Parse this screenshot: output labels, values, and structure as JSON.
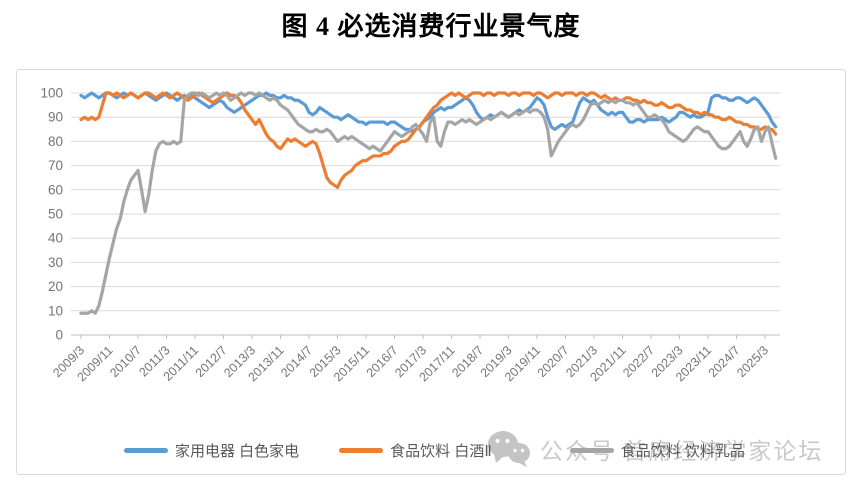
{
  "title": "图 4 必选消费行业景气度",
  "watermark": {
    "icon": "wechat-icon",
    "text": "公众号 首席经济学家论坛"
  },
  "chart_data": {
    "type": "line",
    "title": "图 4 必选消费行业景气度",
    "x_period": "monthly",
    "x_start": "2009/3",
    "x_tick_labels": [
      "2009/3",
      "2009/11",
      "2010/7",
      "2011/3",
      "2011/11",
      "2012/7",
      "2013/3",
      "2013/11",
      "2014/7",
      "2015/3",
      "2015/11",
      "2016/7",
      "2017/3",
      "2017/11",
      "2018/7",
      "2019/3",
      "2019/11",
      "2020/7",
      "2021/3",
      "2021/11",
      "2022/7",
      "2023/3",
      "2023/11",
      "2024/7",
      "2025/3"
    ],
    "x_tick_every_n_points": 8,
    "n_points": 196,
    "ylim": [
      0,
      100
    ],
    "yticks": [
      0,
      10,
      20,
      30,
      40,
      50,
      60,
      70,
      80,
      90,
      100
    ],
    "grid": "horizontal",
    "legend_position": "bottom",
    "axis_label_color": "#757575",
    "gridline_color": "#d9d9d9",
    "axis_line_color": "#bfbfbf",
    "series": [
      {
        "name": "家用电器 白色家电",
        "color": "#5B9BD5",
        "values": [
          99,
          98,
          99,
          100,
          99,
          98,
          99,
          100,
          100,
          99,
          98,
          99,
          100,
          99,
          100,
          99,
          98,
          99,
          100,
          99,
          98,
          97,
          98,
          99,
          100,
          99,
          98,
          97,
          98,
          99,
          98,
          99,
          98,
          97,
          96,
          95,
          94,
          95,
          96,
          97,
          96,
          94,
          93,
          92,
          93,
          94,
          95,
          96,
          97,
          98,
          99,
          99,
          100,
          99,
          99,
          98,
          98,
          99,
          98,
          98,
          97,
          97,
          96,
          95,
          92,
          91,
          92,
          94,
          93,
          92,
          91,
          90,
          90,
          89,
          90,
          91,
          90,
          89,
          88,
          88,
          87,
          88,
          88,
          88,
          88,
          88,
          87,
          88,
          88,
          87,
          86,
          85,
          85,
          84,
          85,
          86,
          88,
          89,
          90,
          92,
          93,
          94,
          93,
          94,
          94,
          95,
          96,
          97,
          98,
          97,
          95,
          92,
          90,
          89,
          90,
          91,
          90,
          91,
          92,
          91,
          90,
          91,
          92,
          93,
          92,
          93,
          94,
          96,
          98,
          97,
          95,
          90,
          86,
          85,
          86,
          87,
          86,
          87,
          88,
          92,
          96,
          98,
          97,
          96,
          97,
          95,
          93,
          92,
          91,
          92,
          91,
          92,
          92,
          90,
          88,
          88,
          89,
          89,
          88,
          89,
          89,
          89,
          89,
          90,
          89,
          88,
          89,
          90,
          92,
          92,
          91,
          90,
          91,
          90,
          90,
          91,
          92,
          98,
          99,
          99,
          98,
          98,
          97,
          97,
          98,
          98,
          97,
          96,
          97,
          98,
          97,
          95,
          93,
          91,
          88,
          86
        ]
      },
      {
        "name": "食品饮料 白酒Ⅱ",
        "color": "#ED7D31",
        "values": [
          89,
          90,
          89,
          90,
          89,
          90,
          95,
          100,
          100,
          99,
          100,
          99,
          98,
          99,
          100,
          99,
          98,
          99,
          100,
          100,
          99,
          98,
          99,
          100,
          99,
          98,
          99,
          100,
          99,
          98,
          97,
          98,
          99,
          100,
          99,
          98,
          97,
          96,
          97,
          98,
          99,
          100,
          99,
          99,
          98,
          96,
          93,
          91,
          89,
          87,
          89,
          86,
          83,
          81,
          80,
          78,
          77,
          79,
          81,
          80,
          81,
          80,
          79,
          78,
          79,
          80,
          79,
          75,
          70,
          65,
          63,
          62,
          61,
          64,
          66,
          67,
          68,
          70,
          71,
          72,
          72,
          73,
          74,
          74,
          74,
          75,
          75,
          76,
          78,
          79,
          80,
          80,
          81,
          83,
          85,
          86,
          88,
          90,
          92,
          94,
          95,
          97,
          98,
          99,
          100,
          99,
          100,
          99,
          98,
          99,
          100,
          100,
          100,
          99,
          100,
          100,
          99,
          100,
          100,
          100,
          99,
          100,
          100,
          99,
          100,
          100,
          100,
          99,
          100,
          100,
          99,
          98,
          99,
          100,
          100,
          99,
          100,
          100,
          100,
          99,
          100,
          100,
          99,
          100,
          100,
          99,
          98,
          99,
          98,
          97,
          98,
          97,
          97,
          98,
          98,
          97,
          97,
          96,
          97,
          96,
          96,
          95,
          95,
          96,
          95,
          94,
          94,
          95,
          95,
          94,
          93,
          93,
          92,
          92,
          91,
          92,
          91,
          91,
          90,
          90,
          89,
          89,
          90,
          89,
          88,
          88,
          87,
          87,
          86,
          86,
          85,
          85,
          86,
          85,
          85,
          83
        ]
      },
      {
        "name": "食品饮料 饮料乳品",
        "color": "#A5A5A5",
        "values": [
          9,
          9,
          9,
          10,
          9,
          12,
          18,
          25,
          32,
          38,
          44,
          48,
          55,
          60,
          64,
          66,
          68,
          60,
          51,
          58,
          68,
          76,
          79,
          80,
          79,
          79,
          80,
          79,
          80,
          97,
          99,
          100,
          100,
          99,
          100,
          99,
          98,
          99,
          100,
          99,
          100,
          99,
          97,
          98,
          99,
          100,
          99,
          100,
          100,
          99,
          100,
          99,
          98,
          97,
          98,
          97,
          95,
          94,
          93,
          91,
          89,
          87,
          86,
          85,
          84,
          84,
          85,
          84,
          84,
          85,
          84,
          82,
          80,
          81,
          82,
          81,
          82,
          81,
          80,
          79,
          78,
          77,
          78,
          77,
          76,
          78,
          80,
          82,
          84,
          83,
          82,
          83,
          84,
          86,
          87,
          85,
          83,
          80,
          88,
          90,
          80,
          78,
          84,
          88,
          88,
          87,
          88,
          89,
          88,
          89,
          88,
          87,
          88,
          89,
          90,
          89,
          90,
          91,
          92,
          91,
          90,
          91,
          92,
          91,
          92,
          93,
          92,
          93,
          93,
          92,
          90,
          85,
          74,
          77,
          80,
          82,
          84,
          86,
          87,
          86,
          87,
          89,
          92,
          95,
          96,
          95,
          96,
          97,
          96,
          97,
          96,
          97,
          97,
          96,
          96,
          95,
          96,
          94,
          92,
          90,
          90,
          91,
          90,
          89,
          87,
          84,
          83,
          82,
          81,
          80,
          81,
          83,
          85,
          86,
          85,
          84,
          84,
          82,
          80,
          78,
          77,
          77,
          78,
          80,
          82,
          84,
          80,
          78,
          81,
          85,
          86,
          80,
          84,
          86,
          79,
          73
        ]
      }
    ]
  }
}
